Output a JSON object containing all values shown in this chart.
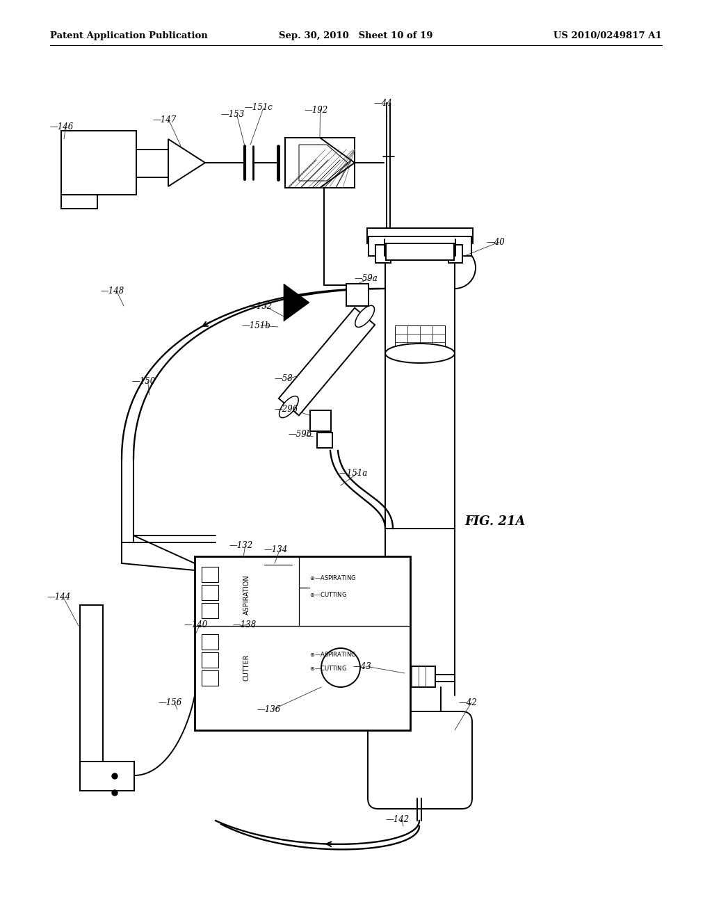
{
  "bg_color": "#ffffff",
  "header_left": "Patent Application Publication",
  "header_mid": "Sep. 30, 2010   Sheet 10 of 19",
  "header_right": "US 2010/0249817 A1",
  "fig_label": "FIG. 21A",
  "header_font_size": 9.5,
  "ref_font_size": 8.5,
  "lw": 1.4
}
